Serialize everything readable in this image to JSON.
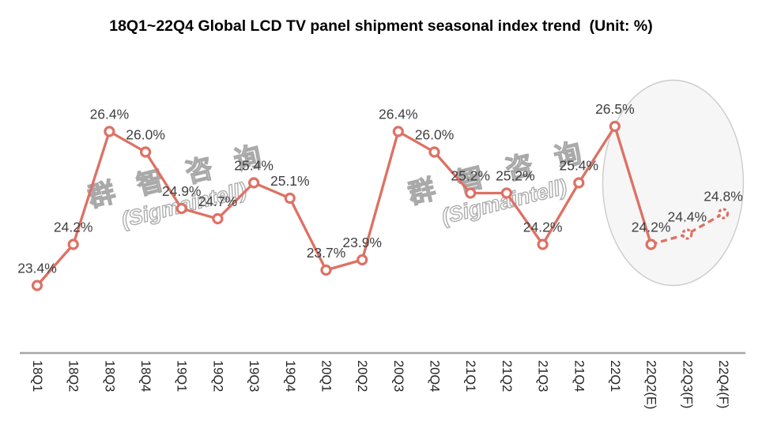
{
  "title": "18Q1~22Q4 Global LCD TV panel shipment seasonal index trend  (Unit: %)",
  "watermark": {
    "line1": "群 智 咨 询",
    "line2": "(Sigmaintell)"
  },
  "colors": {
    "line": "#dd7164",
    "marker_fill": "#ffffff",
    "axis": "#a6a6a6",
    "data_label": "#404040",
    "tick_label": "#262626",
    "title": "#000000",
    "ellipse_stroke": "#cccccc",
    "ellipse_fill": "#f6f6f6",
    "watermark_stroke": "#a9a9a9"
  },
  "chart_data": {
    "type": "line",
    "title": "18Q1~22Q4 Global LCD TV panel shipment seasonal index trend (Unit: %)",
    "unit": "%",
    "categories": [
      "18Q1",
      "18Q2",
      "18Q3",
      "18Q4",
      "19Q1",
      "19Q2",
      "19Q3",
      "19Q4",
      "20Q1",
      "20Q2",
      "20Q3",
      "20Q4",
      "21Q1",
      "21Q2",
      "21Q3",
      "21Q4",
      "22Q1",
      "22Q2(E)",
      "22Q3(F)",
      "22Q4(F)"
    ],
    "values": [
      23.4,
      24.2,
      26.4,
      26.0,
      24.9,
      24.7,
      25.4,
      25.1,
      23.7,
      23.9,
      26.4,
      26.0,
      25.2,
      25.2,
      24.2,
      25.4,
      26.5,
      24.2,
      24.4,
      24.8
    ],
    "labels": [
      "23.4%",
      "24.2%",
      "26.4%",
      "26.0%",
      "24.9%",
      "24.7%",
      "25.4%",
      "25.1%",
      "23.7%",
      "23.9%",
      "26.4%",
      "26.0%",
      "25.2%",
      "25.2%",
      "24.2%",
      "25.4%",
      "26.5%",
      "24.2%",
      "24.4%",
      "24.8%"
    ],
    "solid_end_index": 17,
    "dashed_marker_start_index": 18,
    "ylim": [
      22,
      27
    ],
    "xlabel": "",
    "ylabel": "",
    "grid": false,
    "legend": null,
    "annotation": "ellipse highlight around the 22Q2(E)-22Q4(F) forecast points"
  }
}
